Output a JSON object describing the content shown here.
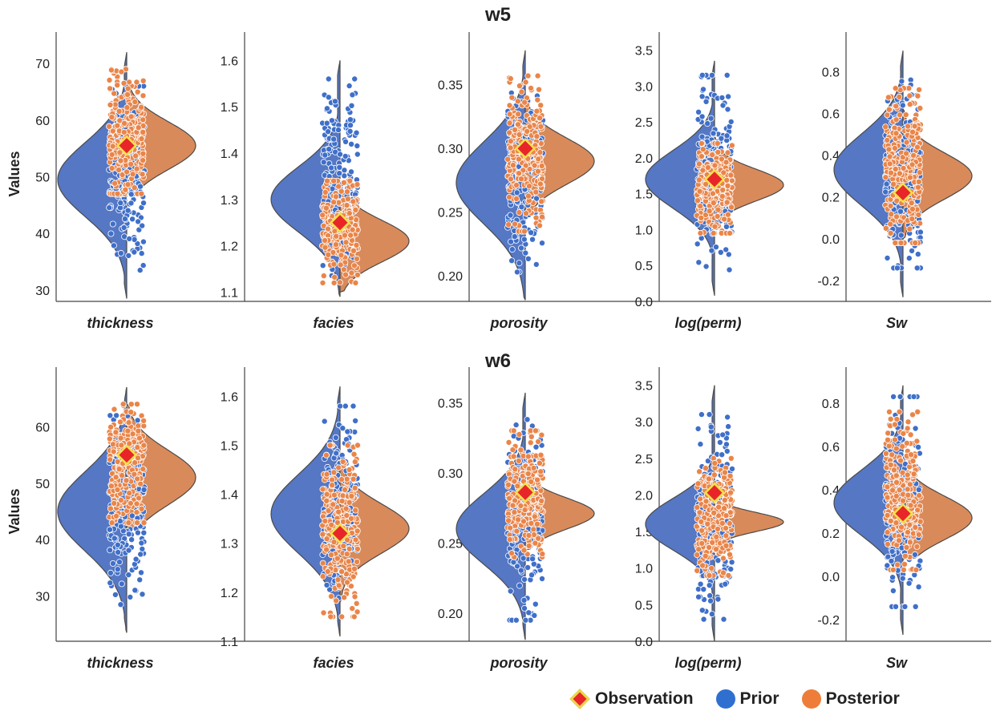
{
  "colors": {
    "prior": "#5577c4",
    "posterior": "#d98a5a",
    "prior_point": "#3f6fc9",
    "posterior_point": "#ea8549",
    "observation": "#e8262a",
    "observation_edge": "#f2e24a",
    "outline": "#4a4a4a"
  },
  "legend": {
    "observation": "Observation",
    "prior": "Prior",
    "posterior": "Posterior"
  },
  "chart_data": [
    {
      "type": "violin",
      "title": "w5",
      "ylabel": "Values",
      "panels": [
        {
          "label": "thickness",
          "ylim": [
            28,
            73
          ],
          "ticks": [
            30,
            40,
            50,
            60,
            70
          ],
          "tick_labels": [
            "30",
            "40",
            "50",
            "60",
            "70"
          ],
          "prior": {
            "min": 28.5,
            "max": 72,
            "mode": 49.5,
            "spread": 6.5
          },
          "posterior": {
            "min": 47,
            "max": 66,
            "mode": 55.5,
            "spread": 4.2
          },
          "prior_points": {
            "min": 33.5,
            "max": 66
          },
          "posterior_points": {
            "min": 47,
            "max": 69
          },
          "observation": 55.5
        },
        {
          "label": "facies",
          "ylim": [
            1.08,
            1.63
          ],
          "ticks": [
            1.1,
            1.2,
            1.3,
            1.4,
            1.5,
            1.6
          ],
          "tick_labels": [
            "1.1",
            "1.2",
            "1.3",
            "1.4",
            "1.5",
            "1.6"
          ],
          "prior": {
            "min": 1.09,
            "max": 1.6,
            "mode": 1.3,
            "spread": 0.07
          },
          "posterior": {
            "min": 1.1,
            "max": 1.34,
            "mode": 1.21,
            "spread": 0.045
          },
          "prior_points": {
            "min": 1.13,
            "max": 1.56
          },
          "posterior_points": {
            "min": 1.12,
            "max": 1.34
          },
          "observation": 1.25
        },
        {
          "label": "porosity",
          "ylim": [
            0.18,
            0.38
          ],
          "ticks": [
            0.2,
            0.25,
            0.3,
            0.35
          ],
          "tick_labels": [
            "0.20",
            "0.25",
            "0.30",
            "0.35"
          ],
          "prior": {
            "min": 0.181,
            "max": 0.377,
            "mode": 0.273,
            "spread": 0.032
          },
          "posterior": {
            "min": 0.245,
            "max": 0.335,
            "mode": 0.29,
            "spread": 0.018
          },
          "prior_points": {
            "min": 0.203,
            "max": 0.355
          },
          "posterior_points": {
            "min": 0.235,
            "max": 0.357
          },
          "observation": 0.3
        },
        {
          "label": "log(perm)",
          "ylim": [
            0.0,
            3.55
          ],
          "ticks": [
            0.0,
            0.5,
            1.0,
            1.5,
            2.0,
            2.5,
            3.0,
            3.5
          ],
          "tick_labels": [
            "0.0",
            "0.5",
            "1.0",
            "1.5",
            "2.0",
            "2.5",
            "3.0",
            "3.5"
          ],
          "prior": {
            "min": 0.08,
            "max": 3.35,
            "mode": 1.7,
            "spread": 0.4
          },
          "posterior": {
            "min": 1.0,
            "max": 2.3,
            "mode": 1.62,
            "spread": 0.22
          },
          "prior_points": {
            "min": 0.44,
            "max": 3.15
          },
          "posterior_points": {
            "min": 0.95,
            "max": 2.2
          },
          "observation": 1.7
        },
        {
          "label": "Sw",
          "ylim": [
            -0.3,
            0.92
          ],
          "ticks": [
            -0.2,
            0.0,
            0.2,
            0.4,
            0.6,
            0.8
          ],
          "tick_labels": [
            "-0.2",
            "0.0",
            "0.2",
            "0.4",
            "0.6",
            "0.8"
          ],
          "prior": {
            "min": -0.28,
            "max": 0.9,
            "mode": 0.33,
            "spread": 0.17
          },
          "posterior": {
            "min": 0.0,
            "max": 0.62,
            "mode": 0.3,
            "spread": 0.11
          },
          "prior_points": {
            "min": -0.14,
            "max": 0.76
          },
          "posterior_points": {
            "min": -0.02,
            "max": 0.72
          },
          "observation": 0.22
        }
      ]
    },
    {
      "type": "violin",
      "title": "w6",
      "ylabel": "Values",
      "panels": [
        {
          "label": "thickness",
          "ylim": [
            22,
            68
          ],
          "ticks": [
            30,
            40,
            50,
            60
          ],
          "tick_labels": [
            "30",
            "40",
            "50",
            "60"
          ],
          "prior": {
            "min": 23.5,
            "max": 67,
            "mode": 45,
            "spread": 7
          },
          "posterior": {
            "min": 42,
            "max": 64,
            "mode": 51,
            "spread": 4.8
          },
          "prior_points": {
            "min": 28.5,
            "max": 62
          },
          "posterior_points": {
            "min": 43,
            "max": 64
          },
          "observation": 55
        },
        {
          "label": "facies",
          "ylim": [
            1.1,
            1.63
          ],
          "ticks": [
            1.1,
            1.2,
            1.3,
            1.4,
            1.5,
            1.6
          ],
          "tick_labels": [
            "1.1",
            "1.2",
            "1.3",
            "1.4",
            "1.5",
            "1.6"
          ],
          "prior": {
            "min": 1.11,
            "max": 1.62,
            "mode": 1.36,
            "spread": 0.08
          },
          "posterior": {
            "min": 1.18,
            "max": 1.48,
            "mode": 1.33,
            "spread": 0.05
          },
          "prior_points": {
            "min": 1.17,
            "max": 1.58
          },
          "posterior_points": {
            "min": 1.15,
            "max": 1.5
          },
          "observation": 1.32
        },
        {
          "label": "porosity",
          "ylim": [
            0.18,
            0.365
          ],
          "ticks": [
            0.2,
            0.25,
            0.3,
            0.35
          ],
          "tick_labels": [
            "0.20",
            "0.25",
            "0.30",
            "0.35"
          ],
          "prior": {
            "min": 0.181,
            "max": 0.357,
            "mode": 0.26,
            "spread": 0.025
          },
          "posterior": {
            "min": 0.245,
            "max": 0.31,
            "mode": 0.271,
            "spread": 0.011
          },
          "prior_points": {
            "min": 0.195,
            "max": 0.338
          },
          "posterior_points": {
            "min": 0.24,
            "max": 0.33
          },
          "observation": 0.286
        },
        {
          "label": "log(perm)",
          "ylim": [
            0.0,
            3.55
          ],
          "ticks": [
            0.0,
            0.5,
            1.0,
            1.5,
            2.0,
            2.5,
            3.0,
            3.5
          ],
          "tick_labels": [
            "0.0",
            "0.5",
            "1.0",
            "1.5",
            "2.0",
            "2.5",
            "3.0",
            "3.5"
          ],
          "prior": {
            "min": 0.0,
            "max": 3.5,
            "mode": 1.6,
            "spread": 0.35
          },
          "posterior": {
            "min": 1.35,
            "max": 2.1,
            "mode": 1.63,
            "spread": 0.13
          },
          "prior_points": {
            "min": 0.3,
            "max": 3.1
          },
          "posterior_points": {
            "min": 0.9,
            "max": 2.5
          },
          "observation": 2.03
        },
        {
          "label": "Sw",
          "ylim": [
            -0.3,
            0.9
          ],
          "ticks": [
            -0.2,
            0.0,
            0.2,
            0.4,
            0.6,
            0.8
          ],
          "tick_labels": [
            "-0.2",
            "0.0",
            "0.2",
            "0.4",
            "0.6",
            "0.8"
          ],
          "prior": {
            "min": -0.27,
            "max": 0.88,
            "mode": 0.34,
            "spread": 0.15
          },
          "posterior": {
            "min": 0.08,
            "max": 0.55,
            "mode": 0.27,
            "spread": 0.1
          },
          "prior_points": {
            "min": -0.14,
            "max": 0.83
          },
          "posterior_points": {
            "min": 0.03,
            "max": 0.76
          },
          "observation": 0.29
        }
      ]
    }
  ]
}
